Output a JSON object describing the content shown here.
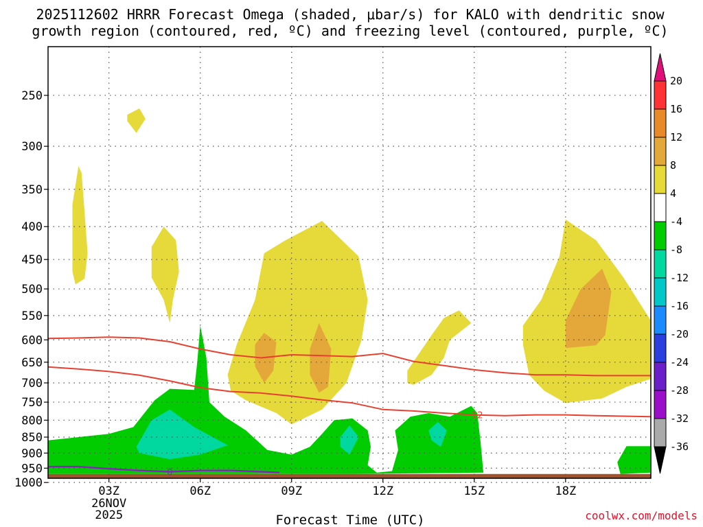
{
  "title_lines": [
    "2025112602 HRRR Forecast Omega (shaded, μbar/s) for KALO with dendritic snow",
    "growth region (contoured, red, ºC) and freezing level (contoured, purple, ºC)"
  ],
  "credit": "coolwx.com/models",
  "chart_data": {
    "type": "time-height contour",
    "xlabel": "Forecast Time (UTC)",
    "x_range_hours": [
      1.0,
      20.8
    ],
    "x_ticks": [
      {
        "hour": 3,
        "label": "03Z",
        "sub": [
          "26NOV",
          "2025"
        ]
      },
      {
        "hour": 6,
        "label": "06Z",
        "sub": []
      },
      {
        "hour": 9,
        "label": "09Z",
        "sub": []
      },
      {
        "hour": 12,
        "label": "12Z",
        "sub": []
      },
      {
        "hour": 15,
        "label": "15Z",
        "sub": []
      },
      {
        "hour": 18,
        "label": "18Z",
        "sub": []
      }
    ],
    "y_scale": "log",
    "y_range_hpa": [
      985,
      210
    ],
    "y_ticks": [
      250,
      300,
      350,
      400,
      450,
      500,
      550,
      600,
      650,
      700,
      750,
      800,
      850,
      900,
      950,
      1000
    ],
    "ground_top_hpa": 970,
    "ground_color": "#a0522d",
    "colorbar": {
      "labels": [
        "20",
        "16",
        "12",
        "8",
        "4",
        "-4",
        "-8",
        "-12",
        "-16",
        "-20",
        "-24",
        "-28",
        "-32",
        "-36"
      ],
      "bins": [
        {
          "color": "#ff3333"
        },
        {
          "color": "#e88a2a"
        },
        {
          "color": "#e4a83a"
        },
        {
          "color": "#e6d93a"
        },
        {
          "color": "#ffffff"
        },
        {
          "color": "#00cc00"
        },
        {
          "color": "#00d8a0"
        },
        {
          "color": "#00c8c8"
        },
        {
          "color": "#1a8cff"
        },
        {
          "color": "#2a3fdd"
        },
        {
          "color": "#6a1fc8"
        },
        {
          "color": "#9a10c8"
        },
        {
          "color": "#aaaaaa"
        }
      ],
      "top_arrow_color": "#e0107a",
      "bottom_arrow_color": "#000000"
    },
    "dgz_contours": [
      {
        "name": "",
        "label": "",
        "color": "#e84030",
        "points": [
          [
            1.0,
            597
          ],
          [
            2.0,
            596
          ],
          [
            3.0,
            594
          ],
          [
            4.0,
            596
          ],
          [
            5.0,
            604
          ],
          [
            6.0,
            620
          ],
          [
            7.0,
            633
          ],
          [
            8.0,
            640
          ],
          [
            9.0,
            633
          ],
          [
            10.0,
            635
          ],
          [
            11.0,
            637
          ],
          [
            12.0,
            630
          ],
          [
            13.0,
            648
          ],
          [
            14.0,
            658
          ],
          [
            15.0,
            668
          ],
          [
            16.0,
            675
          ],
          [
            17.0,
            680
          ],
          [
            18.0,
            680
          ],
          [
            19.0,
            682
          ],
          [
            20.8,
            682
          ]
        ]
      },
      {
        "name": "",
        "label": "12",
        "label_hour": 15.1,
        "color": "#e84030",
        "points": [
          [
            1.0,
            661
          ],
          [
            2.0,
            666
          ],
          [
            3.0,
            672
          ],
          [
            4.0,
            681
          ],
          [
            5.0,
            695
          ],
          [
            6.0,
            712
          ],
          [
            7.0,
            722
          ],
          [
            8.0,
            726
          ],
          [
            9.0,
            734
          ],
          [
            10.0,
            744
          ],
          [
            11.0,
            752
          ],
          [
            12.0,
            770
          ],
          [
            13.0,
            774
          ],
          [
            14.0,
            780
          ],
          [
            15.0,
            785
          ],
          [
            16.0,
            787
          ],
          [
            17.0,
            785
          ],
          [
            18.0,
            785
          ],
          [
            19.0,
            787
          ],
          [
            20.8,
            790
          ]
        ]
      }
    ],
    "freezing_level": {
      "name": "",
      "label": "0",
      "label_hour": 5.0,
      "color": "#8a20c0",
      "points": [
        [
          1.0,
          945
        ],
        [
          2.0,
          945
        ],
        [
          3.0,
          952
        ],
        [
          4.0,
          958
        ],
        [
          5.0,
          962
        ],
        [
          6.0,
          958
        ],
        [
          7.0,
          958
        ],
        [
          8.0,
          962
        ],
        [
          8.6,
          965
        ]
      ]
    },
    "omega_regions": [
      {
        "value": "4 to 8",
        "color": "#e6d93a",
        "points": [
          [
            3.6,
            268
          ],
          [
            4.0,
            262
          ],
          [
            4.2,
            272
          ],
          [
            3.9,
            286
          ],
          [
            3.6,
            274
          ]
        ]
      },
      {
        "value": "4 to 8",
        "color": "#e6d93a",
        "points": [
          [
            1.8,
            370
          ],
          [
            2.0,
            322
          ],
          [
            2.1,
            330
          ],
          [
            2.2,
            380
          ],
          [
            2.3,
            440
          ],
          [
            2.2,
            482
          ],
          [
            1.9,
            492
          ],
          [
            1.8,
            470
          ],
          [
            1.8,
            420
          ]
        ]
      },
      {
        "value": "4 to 8",
        "color": "#e6d93a",
        "points": [
          [
            4.4,
            430
          ],
          [
            4.8,
            400
          ],
          [
            5.2,
            420
          ],
          [
            5.3,
            470
          ],
          [
            5.1,
            520
          ],
          [
            5.0,
            565
          ],
          [
            4.8,
            520
          ],
          [
            4.4,
            480
          ]
        ]
      },
      {
        "value": "4 to 8",
        "color": "#e6d93a",
        "points": [
          [
            6.9,
            680
          ],
          [
            7.2,
            610
          ],
          [
            7.8,
            520
          ],
          [
            8.1,
            440
          ],
          [
            8.8,
            420
          ],
          [
            10.0,
            392
          ],
          [
            11.2,
            445
          ],
          [
            11.5,
            520
          ],
          [
            11.3,
            600
          ],
          [
            10.8,
            700
          ],
          [
            10.0,
            770
          ],
          [
            9.0,
            812
          ],
          [
            8.5,
            780
          ],
          [
            7.5,
            745
          ],
          [
            7.0,
            720
          ]
        ]
      },
      {
        "value": "8 to 12",
        "color": "#e4a83a",
        "points": [
          [
            7.8,
            610
          ],
          [
            8.1,
            585
          ],
          [
            8.5,
            605
          ],
          [
            8.4,
            670
          ],
          [
            8.1,
            700
          ],
          [
            7.8,
            660
          ]
        ]
      },
      {
        "value": "8 to 12",
        "color": "#e4a83a",
        "points": [
          [
            9.6,
            620
          ],
          [
            9.9,
            565
          ],
          [
            10.3,
            620
          ],
          [
            10.2,
            710
          ],
          [
            9.9,
            725
          ],
          [
            9.6,
            680
          ]
        ]
      },
      {
        "value": "4 to 8",
        "color": "#e6d93a",
        "points": [
          [
            12.8,
            670
          ],
          [
            13.6,
            590
          ],
          [
            14.0,
            555
          ],
          [
            14.5,
            540
          ],
          [
            14.9,
            565
          ],
          [
            14.2,
            600
          ],
          [
            14.0,
            640
          ],
          [
            13.6,
            680
          ],
          [
            13.0,
            705
          ],
          [
            12.8,
            700
          ]
        ]
      },
      {
        "value": "4 to 8",
        "color": "#e6d93a",
        "points": [
          [
            16.6,
            570
          ],
          [
            17.2,
            520
          ],
          [
            17.8,
            445
          ],
          [
            18.0,
            390
          ],
          [
            19.0,
            420
          ],
          [
            19.9,
            480
          ],
          [
            20.8,
            560
          ],
          [
            20.8,
            690
          ],
          [
            20.0,
            710
          ],
          [
            19.2,
            740
          ],
          [
            18.0,
            752
          ],
          [
            17.3,
            720
          ],
          [
            16.8,
            680
          ],
          [
            16.6,
            610
          ]
        ]
      },
      {
        "value": "8 to 12",
        "color": "#e4a83a",
        "points": [
          [
            18.0,
            560
          ],
          [
            18.5,
            500
          ],
          [
            19.2,
            465
          ],
          [
            19.5,
            505
          ],
          [
            19.3,
            590
          ],
          [
            19.0,
            612
          ],
          [
            18.0,
            618
          ]
        ]
      },
      {
        "value": "-4 to -8",
        "color": "#00cc00",
        "points": [
          [
            1.0,
            860
          ],
          [
            2.0,
            850
          ],
          [
            3.0,
            840
          ],
          [
            3.8,
            820
          ],
          [
            4.5,
            745
          ],
          [
            5.0,
            715
          ],
          [
            5.8,
            718
          ],
          [
            5.9,
            650
          ],
          [
            6.0,
            570
          ],
          [
            6.2,
            640
          ],
          [
            6.3,
            750
          ],
          [
            6.8,
            790
          ],
          [
            7.5,
            830
          ],
          [
            8.2,
            890
          ],
          [
            9.0,
            905
          ],
          [
            9.6,
            880
          ],
          [
            10.0,
            840
          ],
          [
            10.4,
            800
          ],
          [
            11.0,
            795
          ],
          [
            11.5,
            830
          ],
          [
            11.6,
            880
          ],
          [
            11.5,
            940
          ],
          [
            11.8,
            965
          ],
          [
            12.3,
            960
          ],
          [
            12.5,
            890
          ],
          [
            12.4,
            830
          ],
          [
            12.9,
            790
          ],
          [
            13.5,
            780
          ],
          [
            14.2,
            790
          ],
          [
            14.9,
            760
          ],
          [
            15.1,
            780
          ],
          [
            15.2,
            860
          ],
          [
            15.3,
            965
          ],
          [
            11.0,
            970
          ],
          [
            8.0,
            970
          ],
          [
            5.0,
            970
          ],
          [
            1.0,
            970
          ]
        ]
      },
      {
        "value": "-8 to -12",
        "color": "#00d8a0",
        "points": [
          [
            3.9,
            880
          ],
          [
            4.4,
            800
          ],
          [
            5.0,
            770
          ],
          [
            5.8,
            820
          ],
          [
            6.9,
            875
          ],
          [
            6.0,
            905
          ],
          [
            5.0,
            920
          ],
          [
            4.0,
            900
          ]
        ]
      },
      {
        "value": "-8 to -12",
        "color": "#00d8a0",
        "points": [
          [
            10.6,
            850
          ],
          [
            10.9,
            815
          ],
          [
            11.2,
            850
          ],
          [
            10.9,
            905
          ],
          [
            10.6,
            880
          ]
        ]
      },
      {
        "value": "-8 to -12",
        "color": "#00d8a0",
        "points": [
          [
            13.5,
            830
          ],
          [
            13.8,
            805
          ],
          [
            14.1,
            830
          ],
          [
            13.9,
            880
          ],
          [
            13.6,
            860
          ]
        ]
      },
      {
        "value": "-4 to -8",
        "color": "#00cc00",
        "points": [
          [
            19.7,
            930
          ],
          [
            20.0,
            878
          ],
          [
            20.8,
            878
          ],
          [
            20.8,
            965
          ],
          [
            19.8,
            970
          ]
        ]
      }
    ]
  }
}
